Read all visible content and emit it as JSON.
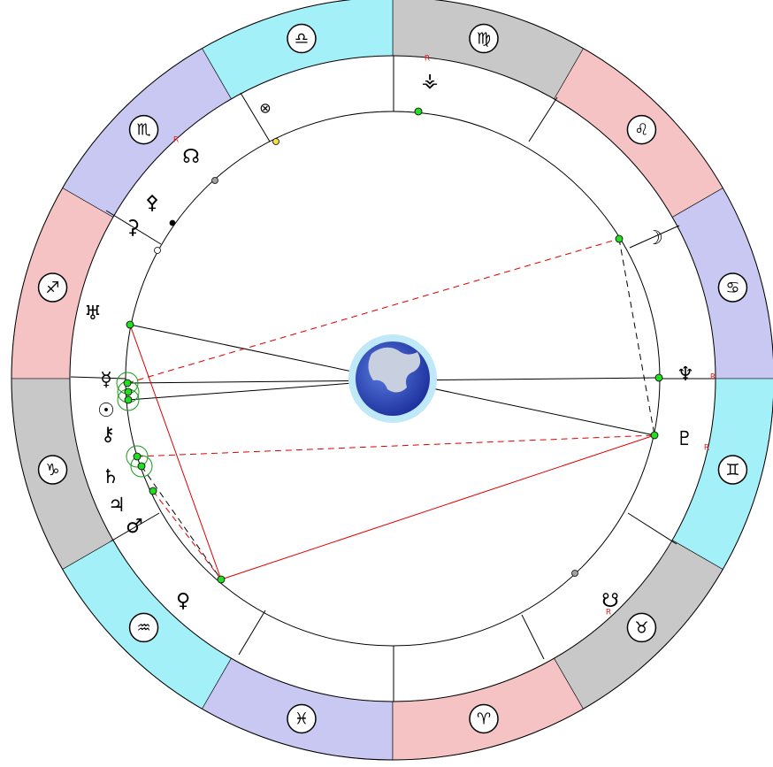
{
  "zodiac": {
    "signs": [
      "♋",
      "♌",
      "♍",
      "♎",
      "♏",
      "♐",
      "♑",
      "♒",
      "♓",
      "♈",
      "♉",
      "♊"
    ]
  },
  "planets": {
    "moon": "☽",
    "uranus": "♅",
    "mercury": "☿",
    "sun": "☉",
    "chiron": "⚷",
    "saturn": "♄",
    "jupiter": "♃",
    "mars": "♂",
    "venus": "♀",
    "north_node": "☊",
    "neptune": "♆",
    "pluto": "♇",
    "south_node": "☋",
    "fortune": "⊗",
    "ceres": "⚳",
    "pallas": "⚴",
    "vesta": "⚶"
  },
  "retrograde": {
    "north_node": "R",
    "neptune": "R",
    "pluto": "R",
    "south_node": "R",
    "vesta": "R"
  }
}
